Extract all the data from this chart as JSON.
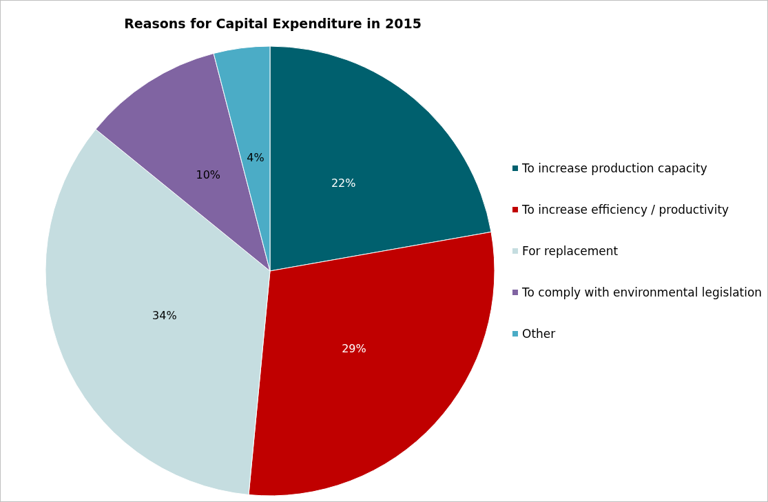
{
  "chart_data": {
    "type": "pie",
    "title": "Reasons for Capital Expenditure in 2015",
    "categories": [
      "To increase production capacity",
      "To increase efficiency / productivity",
      "For replacement",
      "To comply with environmental legislation",
      "Other"
    ],
    "values": [
      22,
      29,
      34,
      10,
      4
    ],
    "colors": [
      "#00606e",
      "#c00000",
      "#c5dde0",
      "#8064a2",
      "#4bacc6"
    ],
    "value_labels": [
      "22%",
      "29%",
      "34%",
      "10%",
      "4%"
    ],
    "legend": "right"
  }
}
